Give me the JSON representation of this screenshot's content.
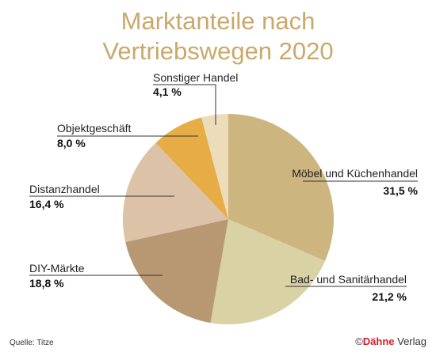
{
  "chart_data": {
    "type": "pie",
    "title_line1": "Marktanteile nach",
    "title_line2": "Vertriebswegen 2020",
    "slices": [
      {
        "name": "Möbel und Küchenhandel",
        "value": 31.5,
        "label": "31,5 %",
        "color": "#cdb57f"
      },
      {
        "name": "Bad- und Sanitärhandel",
        "value": 21.2,
        "label": "21,2 %",
        "color": "#d8d2a4"
      },
      {
        "name": "DIY-Märkte",
        "value": 18.8,
        "label": "18,8 %",
        "color": "#b79873"
      },
      {
        "name": "Distanzhandel",
        "value": 16.4,
        "label": "16,4 %",
        "color": "#dcc2a6"
      },
      {
        "name": "Objektgeschäft",
        "value": 8.0,
        "label": "8,0 %",
        "color": "#e6ad47"
      },
      {
        "name": "Sonstiger Handel",
        "value": 4.1,
        "label": "4,1 %",
        "color": "#ecdcb9"
      }
    ]
  },
  "footer": {
    "source": "Quelle: Titze",
    "copyright": "©",
    "brand": "Dähne",
    "brand_suffix": " Verlag"
  }
}
